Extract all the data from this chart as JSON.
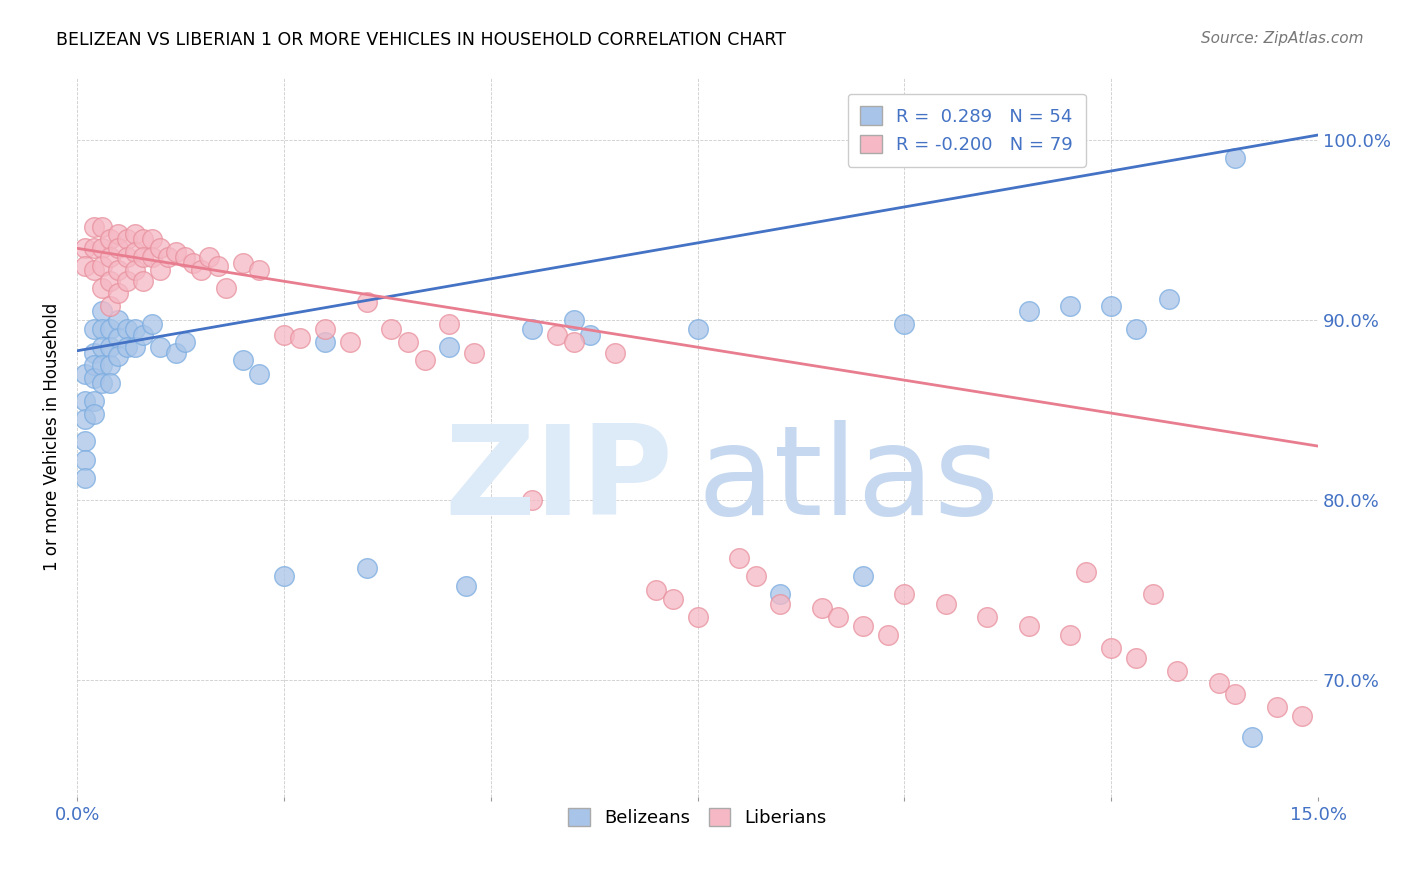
{
  "title": "BELIZEAN VS LIBERIAN 1 OR MORE VEHICLES IN HOUSEHOLD CORRELATION CHART",
  "source": "Source: ZipAtlas.com",
  "ylabel": "1 or more Vehicles in Household",
  "y_ticks": [
    "70.0%",
    "80.0%",
    "90.0%",
    "100.0%"
  ],
  "y_tick_vals": [
    0.7,
    0.8,
    0.9,
    1.0
  ],
  "x_range": [
    0.0,
    0.15
  ],
  "y_range": [
    0.635,
    1.035
  ],
  "belizean_R": 0.289,
  "belizean_N": 54,
  "liberian_R": -0.2,
  "liberian_N": 79,
  "belizean_color": "#a8c4e8",
  "liberian_color": "#f5b8c4",
  "belizean_line_color": "#4472c4",
  "liberian_line_color": "#e87d8f",
  "belizean_edge_color": "#7aace0",
  "liberian_edge_color": "#e8909d",
  "watermark_zip_color": "#ddeaf8",
  "watermark_atlas_color": "#c5d8f0",
  "legend_text_color": "#4472c4",
  "tick_color": "#4472c4",
  "belizean_line_y0": 0.883,
  "belizean_line_y1": 1.003,
  "liberian_line_y0": 0.94,
  "liberian_line_y1": 0.83,
  "belizean_points": [
    [
      0.001,
      0.87
    ],
    [
      0.001,
      0.855
    ],
    [
      0.001,
      0.845
    ],
    [
      0.001,
      0.833
    ],
    [
      0.001,
      0.822
    ],
    [
      0.001,
      0.812
    ],
    [
      0.002,
      0.895
    ],
    [
      0.002,
      0.882
    ],
    [
      0.002,
      0.875
    ],
    [
      0.002,
      0.868
    ],
    [
      0.002,
      0.855
    ],
    [
      0.002,
      0.848
    ],
    [
      0.003,
      0.905
    ],
    [
      0.003,
      0.895
    ],
    [
      0.003,
      0.885
    ],
    [
      0.003,
      0.875
    ],
    [
      0.003,
      0.865
    ],
    [
      0.004,
      0.895
    ],
    [
      0.004,
      0.885
    ],
    [
      0.004,
      0.875
    ],
    [
      0.004,
      0.865
    ],
    [
      0.005,
      0.9
    ],
    [
      0.005,
      0.89
    ],
    [
      0.005,
      0.88
    ],
    [
      0.006,
      0.895
    ],
    [
      0.006,
      0.885
    ],
    [
      0.007,
      0.895
    ],
    [
      0.007,
      0.885
    ],
    [
      0.008,
      0.892
    ],
    [
      0.009,
      0.898
    ],
    [
      0.01,
      0.885
    ],
    [
      0.012,
      0.882
    ],
    [
      0.013,
      0.888
    ],
    [
      0.02,
      0.878
    ],
    [
      0.022,
      0.87
    ],
    [
      0.025,
      0.758
    ],
    [
      0.03,
      0.888
    ],
    [
      0.035,
      0.762
    ],
    [
      0.045,
      0.885
    ],
    [
      0.047,
      0.752
    ],
    [
      0.055,
      0.895
    ],
    [
      0.06,
      0.9
    ],
    [
      0.062,
      0.892
    ],
    [
      0.075,
      0.895
    ],
    [
      0.085,
      0.748
    ],
    [
      0.095,
      0.758
    ],
    [
      0.1,
      0.898
    ],
    [
      0.115,
      0.905
    ],
    [
      0.12,
      0.908
    ],
    [
      0.125,
      0.908
    ],
    [
      0.128,
      0.895
    ],
    [
      0.132,
      0.912
    ],
    [
      0.14,
      0.99
    ],
    [
      0.142,
      0.668
    ]
  ],
  "liberian_points": [
    [
      0.001,
      0.94
    ],
    [
      0.001,
      0.93
    ],
    [
      0.002,
      0.952
    ],
    [
      0.002,
      0.94
    ],
    [
      0.002,
      0.928
    ],
    [
      0.003,
      0.952
    ],
    [
      0.003,
      0.94
    ],
    [
      0.003,
      0.93
    ],
    [
      0.003,
      0.918
    ],
    [
      0.004,
      0.945
    ],
    [
      0.004,
      0.935
    ],
    [
      0.004,
      0.922
    ],
    [
      0.004,
      0.908
    ],
    [
      0.005,
      0.948
    ],
    [
      0.005,
      0.94
    ],
    [
      0.005,
      0.928
    ],
    [
      0.005,
      0.915
    ],
    [
      0.006,
      0.945
    ],
    [
      0.006,
      0.935
    ],
    [
      0.006,
      0.922
    ],
    [
      0.007,
      0.948
    ],
    [
      0.007,
      0.938
    ],
    [
      0.007,
      0.928
    ],
    [
      0.008,
      0.945
    ],
    [
      0.008,
      0.935
    ],
    [
      0.008,
      0.922
    ],
    [
      0.009,
      0.945
    ],
    [
      0.009,
      0.935
    ],
    [
      0.01,
      0.94
    ],
    [
      0.01,
      0.928
    ],
    [
      0.011,
      0.935
    ],
    [
      0.012,
      0.938
    ],
    [
      0.013,
      0.935
    ],
    [
      0.014,
      0.932
    ],
    [
      0.015,
      0.928
    ],
    [
      0.016,
      0.935
    ],
    [
      0.017,
      0.93
    ],
    [
      0.018,
      0.918
    ],
    [
      0.02,
      0.932
    ],
    [
      0.022,
      0.928
    ],
    [
      0.025,
      0.892
    ],
    [
      0.027,
      0.89
    ],
    [
      0.03,
      0.895
    ],
    [
      0.033,
      0.888
    ],
    [
      0.035,
      0.91
    ],
    [
      0.038,
      0.895
    ],
    [
      0.04,
      0.888
    ],
    [
      0.042,
      0.878
    ],
    [
      0.045,
      0.898
    ],
    [
      0.048,
      0.882
    ],
    [
      0.055,
      0.8
    ],
    [
      0.058,
      0.892
    ],
    [
      0.06,
      0.888
    ],
    [
      0.065,
      0.882
    ],
    [
      0.07,
      0.75
    ],
    [
      0.072,
      0.745
    ],
    [
      0.075,
      0.735
    ],
    [
      0.08,
      0.768
    ],
    [
      0.082,
      0.758
    ],
    [
      0.085,
      0.742
    ],
    [
      0.09,
      0.74
    ],
    [
      0.092,
      0.735
    ],
    [
      0.095,
      0.73
    ],
    [
      0.098,
      0.725
    ],
    [
      0.1,
      0.748
    ],
    [
      0.105,
      0.742
    ],
    [
      0.11,
      0.735
    ],
    [
      0.115,
      0.73
    ],
    [
      0.12,
      0.725
    ],
    [
      0.122,
      0.76
    ],
    [
      0.125,
      0.718
    ],
    [
      0.128,
      0.712
    ],
    [
      0.13,
      0.748
    ],
    [
      0.133,
      0.705
    ],
    [
      0.138,
      0.698
    ],
    [
      0.14,
      0.692
    ],
    [
      0.145,
      0.685
    ],
    [
      0.148,
      0.68
    ]
  ]
}
